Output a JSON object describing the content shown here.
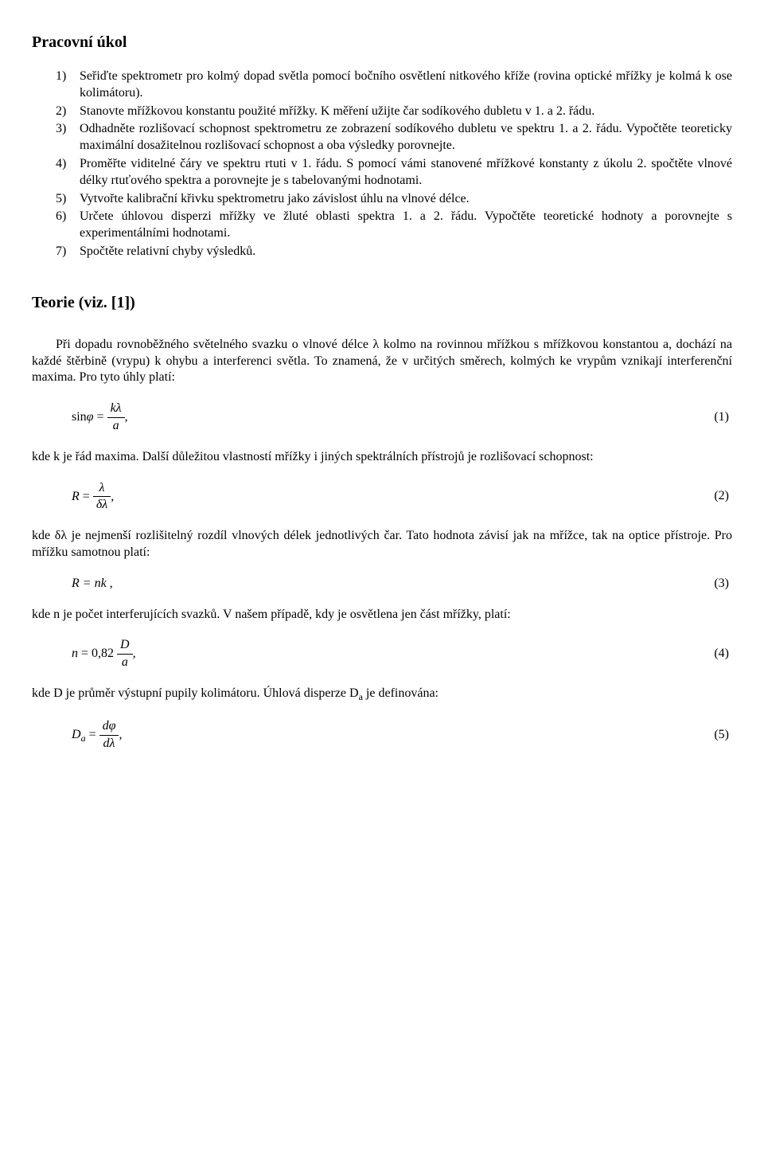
{
  "heading_task": "Pracovní úkol",
  "tasks": [
    {
      "num": "1)",
      "text": "Seřiďte spektrometr pro kolmý dopad světla pomocí bočního osvětlení nitkového kříže (rovina optické mřížky je kolmá k ose kolimátoru)."
    },
    {
      "num": "2)",
      "text": "Stanovte mřížkovou konstantu použité mřížky. K měření užijte čar sodíkového dubletu v 1. a 2. řádu."
    },
    {
      "num": "3)",
      "text": "Odhadněte rozlišovací schopnost spektrometru ze zobrazení sodíkového dubletu ve spektru 1. a 2. řádu. Vypočtěte teoreticky maximální dosažitelnou rozlišovací schopnost a oba výsledky porovnejte."
    },
    {
      "num": "4)",
      "text": "Proměřte viditelné čáry ve spektru rtuti v 1. řádu. S pomocí vámi stanovené mřížkové konstanty z úkolu 2. spočtěte vlnové délky rtuťového spektra a porovnejte je s tabelovanými hodnotami."
    },
    {
      "num": "5)",
      "text": "Vytvořte kalibrační křivku spektrometru jako závislost úhlu na vlnové délce."
    },
    {
      "num": "6)",
      "text": "Určete úhlovou disperzi mřížky ve žluté oblasti spektra 1. a 2. řádu. Vypočtěte teoretické hodnoty a porovnejte s experimentálními hodnotami."
    },
    {
      "num": "7)",
      "text": "Spočtěte relativní chyby výsledků."
    }
  ],
  "heading_theory": "Teorie (viz. [1])",
  "para_intro": "Při dopadu rovnoběžného světelného svazku o vlnové délce λ kolmo na rovinnou mřížkou s mřížkovou konstantou a, dochází na každé štěrbině (vrypu) k ohybu a interferenci světla. To znamená, že v určitých směrech, kolmých ke vrypům vznikají interferenční maxima. Pro tyto úhly platí:",
  "eq1": {
    "lhs": "sin",
    "phi": "φ",
    "eq": "=",
    "kn": "kλ",
    "kd": "a",
    "tail": ",",
    "num": "(1)"
  },
  "para_after1": "kde k je řád maxima. Další důležitou vlastností mřížky i jiných spektrálních přístrojů je rozlišovací schopnost:",
  "eq2": {
    "lhs": "R",
    "eq": " = ",
    "kn": "λ",
    "kd": "δλ",
    "tail": ",",
    "num": "(2)"
  },
  "para_after2": "kde δλ je nejmenší rozlišitelný rozdíl vlnových délek jednotlivých čar. Tato hodnota závisí jak na mřížce, tak na optice přístroje. Pro mřížku samotnou platí:",
  "eq3": {
    "body": "R = nk ,",
    "num": "(3)"
  },
  "para_after3": "kde n je počet interferujících svazků. V našem případě, kdy je osvětlena jen část mřížky, platí:",
  "eq4": {
    "lhs": "n",
    "eq": " = 0,82",
    "kn": "D",
    "kd": "a",
    "tail": ",",
    "num": "(4)"
  },
  "para_after4_a": "kde D je průměr výstupní pupily kolimátoru. Úhlová disperze D",
  "para_after4_sub": "a",
  "para_after4_b": " je definována:",
  "eq5": {
    "lhs": "D",
    "sub": "a",
    "eq": " = ",
    "kn": "dφ",
    "kd": "dλ",
    "tail": ",",
    "num": "(5)"
  }
}
